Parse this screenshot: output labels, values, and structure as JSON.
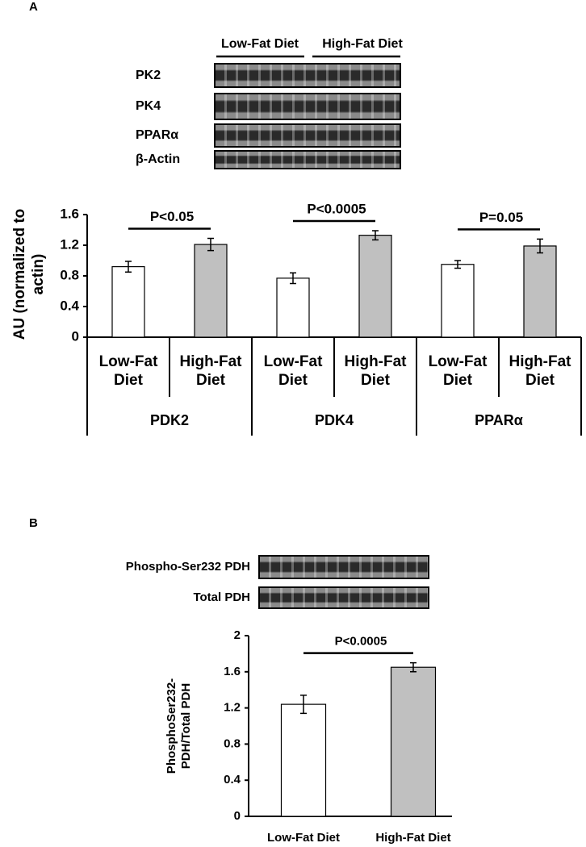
{
  "figure": {
    "panel_labels": [
      "A",
      "B"
    ],
    "blot_a": {
      "group_labels": [
        "Low-Fat Diet",
        "High-Fat Diet"
      ],
      "rows": [
        "PK2",
        "PK4",
        "PPARα",
        "β-Actin"
      ]
    },
    "blot_b": {
      "rows": [
        "Phospho-Ser232 PDH",
        "Total PDH"
      ]
    }
  },
  "chart_data": [
    {
      "type": "grouped_bar",
      "y_label": "AU (normalized to actin)",
      "groups": [
        "PDK2",
        "PDK4",
        "PPARα"
      ],
      "categories": [
        "Low-Fat Diet",
        "High-Fat Diet"
      ],
      "values": [
        [
          0.92,
          1.21
        ],
        [
          0.77,
          1.33
        ],
        [
          0.95,
          1.19
        ]
      ],
      "errors": [
        [
          0.07,
          0.08
        ],
        [
          0.07,
          0.06
        ],
        [
          0.05,
          0.09
        ]
      ],
      "colors": [
        "#ffffff",
        "#c0c0c0"
      ],
      "annotations": [
        "P<0.05",
        "P<0.0005",
        "P=0.05"
      ],
      "ylim": [
        0,
        1.6
      ],
      "yticks": [
        0,
        0.4,
        0.8,
        1.2,
        1.6
      ]
    },
    {
      "type": "bar",
      "y_label": "PhosphoSer232-PDH/Total PDH",
      "categories": [
        "Low-Fat Diet",
        "High-Fat Diet"
      ],
      "values": [
        1.24,
        1.65
      ],
      "errors": [
        0.1,
        0.05
      ],
      "colors": [
        "#ffffff",
        "#c0c0c0"
      ],
      "annotations": [
        "P<0.0005"
      ],
      "ylim": [
        0,
        2
      ],
      "yticks": [
        0,
        0.4,
        0.8,
        1.2,
        1.6,
        2
      ]
    }
  ]
}
